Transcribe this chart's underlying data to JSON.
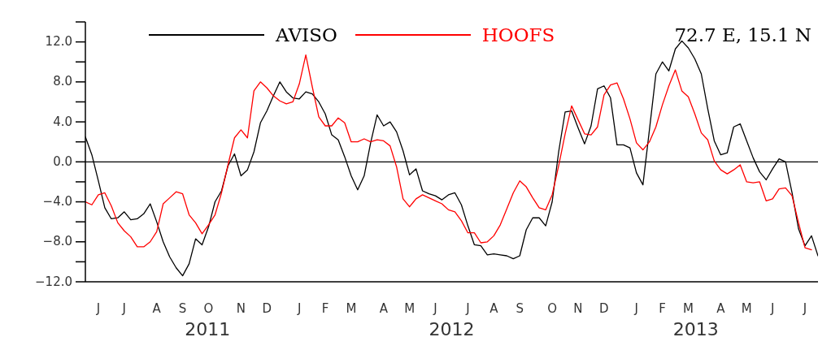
{
  "chart_data": {
    "type": "line",
    "title": "72.7 E, 15.1 N",
    "legend": "top",
    "annotations": [
      "2011",
      "2012",
      "2013"
    ],
    "categories": [
      null,
      null,
      "J",
      null,
      null,
      null,
      "J",
      null,
      null,
      null,
      null,
      "A",
      null,
      null,
      null,
      "S",
      null,
      null,
      null,
      "O",
      null,
      null,
      null,
      null,
      "N",
      null,
      null,
      null,
      "D",
      null,
      null,
      null,
      null,
      "J",
      null,
      null,
      null,
      "F",
      null,
      null,
      null,
      "M",
      null,
      null,
      null,
      null,
      "A",
      null,
      null,
      null,
      "M",
      null,
      null,
      null,
      "J",
      null,
      null,
      null,
      null,
      "J",
      null,
      null,
      null,
      "A",
      null,
      null,
      null,
      "S",
      null,
      null,
      null,
      null,
      "O",
      null,
      null,
      null,
      "N",
      null,
      null,
      null,
      "D",
      null,
      null,
      null,
      null,
      "J",
      null,
      null,
      null,
      "F",
      null,
      null,
      null,
      "M",
      null,
      null,
      null,
      null,
      "A",
      null,
      null,
      null,
      "M",
      null,
      null,
      null,
      "J",
      null,
      null,
      null,
      null,
      "J",
      null,
      null
    ],
    "ylim": [
      -12,
      14
    ],
    "yticks": [
      {
        "value": -12,
        "label": "−12.0"
      },
      {
        "value": -10,
        "label": null
      },
      {
        "value": -8,
        "label": "−8.0"
      },
      {
        "value": -6,
        "label": null
      },
      {
        "value": -4,
        "label": "−4.0"
      },
      {
        "value": -2,
        "label": null
      },
      {
        "value": 0,
        "label": "0.0"
      },
      {
        "value": 2,
        "label": null
      },
      {
        "value": 4,
        "label": "4.0"
      },
      {
        "value": 6,
        "label": null
      },
      {
        "value": 8,
        "label": "8.0"
      },
      {
        "value": 10,
        "label": null
      },
      {
        "value": 12,
        "label": "12.0"
      },
      {
        "value": 14,
        "label": null
      }
    ],
    "ref_lines": [
      {
        "axis": "y",
        "value": 0,
        "color": "#000000",
        "line_style": "solid"
      }
    ],
    "line_style": "solid",
    "series": [
      {
        "name": "AVISO",
        "color": "#000000",
        "values": [
          2.5,
          0.7,
          -1.9,
          -4.6,
          -5.7,
          -5.6,
          -5.0,
          -5.8,
          -5.7,
          -5.2,
          -4.2,
          -6.0,
          -8.0,
          -9.5,
          -10.6,
          -11.4,
          -10.2,
          -7.7,
          -8.3,
          -6.5,
          -4.0,
          -2.9,
          -0.4,
          0.8,
          -1.4,
          -0.8,
          1.0,
          3.9,
          5.1,
          6.6,
          8.0,
          7.0,
          6.4,
          6.3,
          7.0,
          6.8,
          6.0,
          4.8,
          2.7,
          2.2,
          0.5,
          -1.4,
          -2.8,
          -1.4,
          1.9,
          4.7,
          3.6,
          4.0,
          3.0,
          1.1,
          -1.3,
          -0.7,
          -2.9,
          -3.2,
          -3.4,
          -3.8,
          -3.3,
          -3.1,
          -4.3,
          -6.4,
          -8.3,
          -8.4,
          -9.3,
          -9.2,
          -9.3,
          -9.4,
          -9.7,
          -9.4,
          -6.8,
          -5.6,
          -5.6,
          -6.4,
          -4.0,
          1.0,
          5.0,
          5.1,
          3.4,
          1.8,
          3.6,
          7.3,
          7.6,
          6.4,
          1.7,
          1.7,
          1.4,
          -1.1,
          -2.3,
          3.2,
          8.8,
          10.0,
          9.1,
          11.3,
          12.1,
          11.4,
          10.3,
          8.8,
          5.3,
          2.1,
          0.7,
          0.9,
          3.5,
          3.8,
          2.1,
          0.4,
          -1.0,
          -1.8,
          -0.7,
          0.3,
          0.0,
          -3.1,
          -6.7,
          -8.4,
          -7.4,
          -9.4
        ]
      },
      {
        "name": "HOOFS",
        "color": "#ff0000",
        "values": [
          -4.0,
          -4.3,
          -3.3,
          -3.1,
          -4.4,
          -6.1,
          -6.9,
          -7.5,
          -8.5,
          -8.5,
          -8.0,
          -7.0,
          -4.2,
          -3.6,
          -3.0,
          -3.2,
          -5.3,
          -6.1,
          -7.2,
          -6.3,
          -5.3,
          -3.1,
          -0.3,
          2.4,
          3.2,
          2.4,
          7.1,
          8.0,
          7.4,
          6.6,
          6.1,
          5.8,
          6.0,
          7.8,
          10.7,
          7.5,
          4.5,
          3.6,
          3.6,
          4.4,
          3.9,
          2.0,
          2.0,
          2.3,
          2.0,
          2.2,
          2.1,
          1.6,
          -0.5,
          -3.7,
          -4.5,
          -3.7,
          -3.3,
          -3.6,
          -3.9,
          -4.2,
          -4.8,
          -5.0,
          -5.9,
          -7.1,
          -7.1,
          -8.1,
          -8.0,
          -7.4,
          -6.3,
          -4.7,
          -3.1,
          -1.9,
          -2.5,
          -3.6,
          -4.6,
          -4.8,
          -3.3,
          -0.4,
          2.8,
          5.6,
          4.2,
          2.8,
          2.7,
          3.5,
          6.7,
          7.7,
          7.9,
          6.3,
          4.3,
          1.9,
          1.2,
          2.0,
          3.5,
          5.7,
          7.6,
          9.2,
          7.1,
          6.5,
          4.8,
          2.9,
          2.2,
          0.1,
          -0.8,
          -1.2,
          -0.8,
          -0.3,
          -2.0,
          -2.1,
          -2.0,
          -3.9,
          -3.7,
          -2.7,
          -2.6,
          -3.4,
          -6.1,
          -8.6,
          -8.8,
          null
        ]
      }
    ]
  }
}
